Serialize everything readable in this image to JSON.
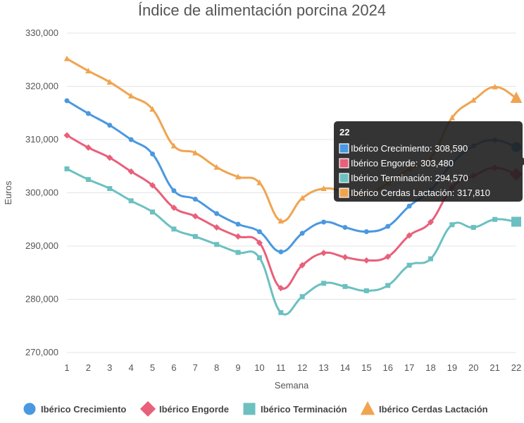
{
  "chart_data": {
    "type": "line",
    "title": "Índice de alimentación porcina 2024",
    "xlabel": "Semana",
    "ylabel": "Euros",
    "x": [
      1,
      2,
      3,
      4,
      5,
      6,
      7,
      8,
      9,
      10,
      11,
      12,
      13,
      14,
      15,
      16,
      17,
      18,
      19,
      20,
      21,
      22
    ],
    "ylim": [
      270000,
      330000
    ],
    "yticks": [
      270000,
      280000,
      290000,
      300000,
      310000,
      320000,
      330000
    ],
    "ytick_labels": [
      "270,000",
      "280,000",
      "290,000",
      "300,000",
      "310,000",
      "320,000",
      "330,000"
    ],
    "grid": true,
    "legend_position": "bottom",
    "series": [
      {
        "name": "Ibérico Crecimiento",
        "color": "#4a98e0",
        "marker": "circle",
        "values": [
          317300,
          314900,
          312700,
          310000,
          307300,
          300400,
          298800,
          296100,
          294100,
          292700,
          288900,
          292400,
          294500,
          293500,
          292700,
          293700,
          297500,
          300500,
          305500,
          308800,
          309900,
          308590
        ]
      },
      {
        "name": "Ibérico Engorde",
        "color": "#e8607a",
        "marker": "diamond",
        "values": [
          310800,
          308500,
          306600,
          304000,
          301400,
          297200,
          295600,
          293500,
          291800,
          290600,
          282100,
          286400,
          288700,
          287900,
          287300,
          288000,
          292000,
          294500,
          301000,
          303200,
          304700,
          303480
        ]
      },
      {
        "name": "Ibérico Terminación",
        "color": "#6cc0c0",
        "marker": "square",
        "values": [
          304500,
          302500,
          300800,
          298500,
          296400,
          293200,
          291800,
          290300,
          288800,
          287800,
          277500,
          280500,
          283000,
          282400,
          281600,
          282600,
          286400,
          287600,
          294000,
          293500,
          295000,
          294570
        ]
      },
      {
        "name": "Ibérico Cerdas Lactación",
        "color": "#f0a450",
        "marker": "triangle",
        "values": [
          325200,
          322900,
          320800,
          318200,
          315700,
          308800,
          307500,
          304800,
          303000,
          301900,
          294700,
          299000,
          300800,
          300200,
          299800,
          301800,
          304500,
          306500,
          314100,
          317400,
          319900,
          317810
        ]
      }
    ],
    "tooltip": {
      "title": "22",
      "rows": [
        "Ibérico Crecimiento: 308,590",
        "Ibérico Engorde: 303,480",
        "Ibérico Terminación: 294,570",
        "Ibérico Cerdas Lactación: 317,810"
      ]
    }
  }
}
